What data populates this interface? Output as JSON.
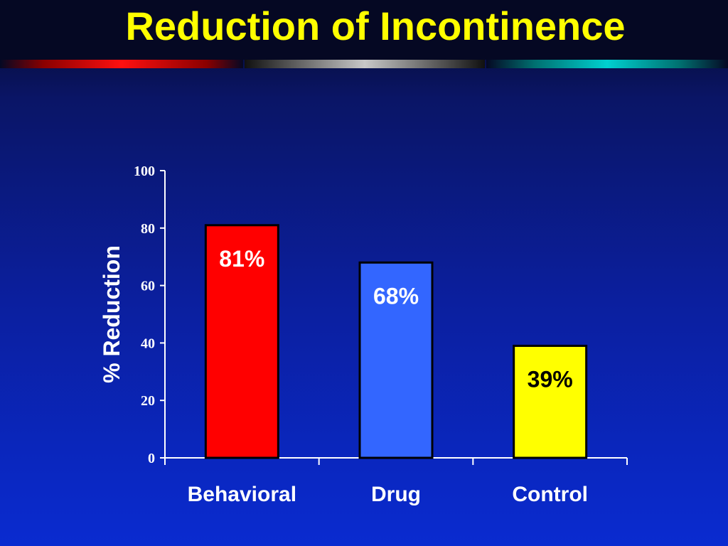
{
  "slide": {
    "title": "Reduction of Incontinence",
    "background_top": "#050823",
    "background_bottom": "#0a2bd0",
    "title_color": "#ffff00"
  },
  "chart_data": {
    "type": "bar",
    "title": "",
    "xlabel": "",
    "ylabel": "% Reduction",
    "ylim": [
      0,
      100
    ],
    "yticks": [
      0,
      20,
      40,
      60,
      80,
      100
    ],
    "categories": [
      "Behavioral",
      "Drug",
      "Control"
    ],
    "values": [
      81,
      68,
      39
    ],
    "data_labels": [
      "81%",
      "68%",
      "39%"
    ],
    "bar_colors": [
      "#ff0000",
      "#3366ff",
      "#ffff00"
    ],
    "data_label_colors": [
      "#ffffff",
      "#ffffff",
      "#000000"
    ],
    "grid": false,
    "legend": "none"
  }
}
